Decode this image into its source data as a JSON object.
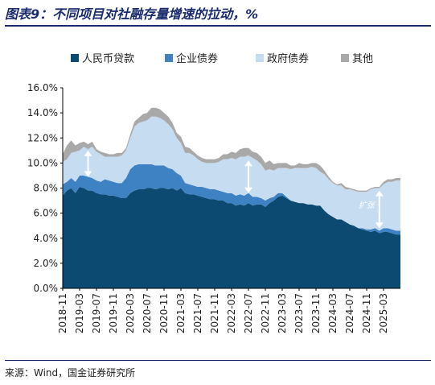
{
  "figure": {
    "title": "图表9：不同项目对社融存量增速的拉动，%",
    "source": "来源：Wind，国金证券研究所"
  },
  "colors": {
    "title": "#1a2b6e",
    "loans": "#0d4a72",
    "corp_bonds": "#3f82c4",
    "gov_bonds": "#c6dcf0",
    "other": "#a9a9a9",
    "arrow": "#ffffff"
  },
  "chart_data": {
    "type": "area",
    "stacked": true,
    "x": [
      "2018-11",
      "2018-12",
      "2019-01",
      "2019-02",
      "2019-03",
      "2019-04",
      "2019-05",
      "2019-06",
      "2019-07",
      "2019-08",
      "2019-09",
      "2019-10",
      "2019-11",
      "2019-12",
      "2020-01",
      "2020-02",
      "2020-03",
      "2020-04",
      "2020-05",
      "2020-06",
      "2020-07",
      "2020-08",
      "2020-09",
      "2020-10",
      "2020-11",
      "2020-12",
      "2021-01",
      "2021-02",
      "2021-03",
      "2021-04",
      "2021-05",
      "2021-06",
      "2021-07",
      "2021-08",
      "2021-09",
      "2021-10",
      "2021-11",
      "2021-12",
      "2022-01",
      "2022-02",
      "2022-03",
      "2022-04",
      "2022-05",
      "2022-06",
      "2022-07",
      "2022-08",
      "2022-09",
      "2022-10",
      "2022-11",
      "2022-12",
      "2023-01",
      "2023-02",
      "2023-03",
      "2023-04",
      "2023-05",
      "2023-06",
      "2023-07",
      "2023-08",
      "2023-09",
      "2023-10",
      "2023-11",
      "2023-12",
      "2024-01",
      "2024-02",
      "2024-03",
      "2024-04",
      "2024-05",
      "2024-06",
      "2024-07",
      "2024-08",
      "2024-09",
      "2024-10",
      "2024-11",
      "2024-12",
      "2025-01",
      "2025-02",
      "2025-03",
      "2025-04",
      "2025-05",
      "2025-06",
      "2025-07"
    ],
    "xticks": [
      "2018-11",
      "2019-03",
      "2019-07",
      "2019-11",
      "2020-03",
      "2020-07",
      "2020-11",
      "2021-03",
      "2021-07",
      "2021-11",
      "2022-03",
      "2022-07",
      "2022-11",
      "2023-03",
      "2023-07",
      "2023-11",
      "2024-03",
      "2024-07",
      "2024-11",
      "2025-03"
    ],
    "ylim": [
      0,
      16
    ],
    "yticks": [
      "0.0%",
      "2.0%",
      "4.0%",
      "6.0%",
      "8.0%",
      "10.0%",
      "12.0%",
      "14.0%",
      "16.0%"
    ],
    "series": [
      {
        "name": "人民币贷款",
        "values": [
          7.4,
          7.8,
          8.0,
          7.6,
          8.1,
          8.0,
          7.8,
          7.8,
          7.6,
          7.5,
          7.5,
          7.4,
          7.4,
          7.3,
          7.2,
          7.2,
          7.6,
          7.8,
          7.9,
          7.9,
          8.0,
          8.0,
          7.9,
          8.0,
          8.0,
          7.9,
          8.0,
          7.8,
          8.0,
          7.6,
          7.5,
          7.5,
          7.4,
          7.3,
          7.2,
          7.1,
          7.1,
          7.0,
          7.0,
          6.8,
          6.8,
          6.6,
          6.7,
          6.6,
          6.8,
          6.6,
          6.7,
          6.7,
          6.5,
          6.8,
          7.0,
          7.3,
          7.4,
          7.2,
          7.0,
          6.9,
          6.8,
          6.8,
          6.7,
          6.7,
          6.6,
          6.6,
          6.2,
          5.9,
          5.7,
          5.5,
          5.5,
          5.3,
          5.1,
          5.0,
          4.8,
          4.7,
          4.6,
          4.5,
          4.6,
          4.4,
          4.5,
          4.5,
          4.4,
          4.3,
          4.3
        ]
      },
      {
        "name": "企业债券",
        "values": [
          0.9,
          0.7,
          0.8,
          0.9,
          0.9,
          1.0,
          1.1,
          1.0,
          1.0,
          1.0,
          1.2,
          1.2,
          1.1,
          1.1,
          1.2,
          1.6,
          1.9,
          2.0,
          2.0,
          2.0,
          1.9,
          1.9,
          1.9,
          1.8,
          1.8,
          1.7,
          1.5,
          1.4,
          1.0,
          0.8,
          0.8,
          0.7,
          0.7,
          0.8,
          0.8,
          0.8,
          0.8,
          0.8,
          0.7,
          0.8,
          0.8,
          0.8,
          0.8,
          0.8,
          0.8,
          0.7,
          0.6,
          0.5,
          0.5,
          0.4,
          0.3,
          0.3,
          0.2,
          0.1,
          0.0,
          0.0,
          0.0,
          0.0,
          0.0,
          0.0,
          0.0,
          0.0,
          0.0,
          0.0,
          0.0,
          0.0,
          0.0,
          0.0,
          0.0,
          0.0,
          0.0,
          0.1,
          0.1,
          0.2,
          0.2,
          0.2,
          0.3,
          0.3,
          0.3,
          0.3,
          0.3
        ]
      },
      {
        "name": "政府债券",
        "values": [
          1.8,
          1.8,
          2.0,
          2.4,
          2.0,
          2.3,
          2.2,
          2.5,
          2.3,
          2.2,
          1.8,
          1.9,
          2.0,
          2.1,
          2.2,
          2.2,
          2.5,
          3.1,
          3.3,
          3.4,
          3.5,
          3.8,
          3.9,
          3.8,
          3.6,
          3.5,
          3.2,
          2.8,
          2.6,
          2.4,
          2.5,
          2.4,
          2.2,
          2.0,
          2.0,
          2.1,
          2.1,
          2.3,
          2.6,
          2.7,
          2.8,
          2.9,
          3.0,
          3.1,
          3.0,
          3.1,
          2.9,
          2.7,
          2.4,
          2.3,
          2.1,
          2.0,
          2.0,
          2.3,
          2.5,
          2.7,
          2.8,
          2.8,
          2.9,
          3.0,
          3.0,
          2.7,
          2.9,
          2.8,
          2.7,
          2.7,
          2.7,
          2.6,
          2.8,
          2.8,
          2.9,
          2.9,
          3.0,
          3.2,
          3.2,
          3.4,
          3.5,
          3.7,
          3.8,
          4.0,
          4.0
        ]
      },
      {
        "name": "其他",
        "values": [
          0.6,
          1.1,
          1.0,
          0.5,
          0.6,
          0.4,
          0.4,
          0.4,
          0.2,
          0.2,
          0.3,
          0.2,
          0.2,
          0.3,
          0.2,
          0.2,
          0.3,
          0.4,
          0.4,
          0.6,
          0.6,
          0.7,
          0.7,
          0.7,
          0.6,
          0.6,
          0.5,
          0.4,
          0.5,
          0.5,
          0.4,
          0.3,
          0.3,
          0.3,
          0.3,
          0.3,
          0.3,
          0.3,
          0.4,
          0.4,
          0.5,
          0.5,
          0.6,
          0.7,
          0.6,
          0.5,
          0.6,
          0.6,
          0.6,
          0.7,
          0.5,
          0.4,
          0.4,
          0.4,
          0.3,
          0.2,
          0.4,
          0.3,
          0.3,
          0.3,
          0.4,
          0.5,
          0.3,
          0.2,
          0.1,
          0.1,
          0.2,
          0.2,
          0.1,
          0.1,
          0.1,
          0.1,
          0.1,
          0.1,
          0.1,
          0.1,
          0.2,
          0.2,
          0.2,
          0.2,
          0.2
        ]
      }
    ],
    "legend": {
      "position": "top"
    },
    "annotations": [
      {
        "type": "double-arrow",
        "x": "2019-05",
        "y_from": 8.9,
        "y_to": 11.0,
        "label": ""
      },
      {
        "type": "double-arrow",
        "x": "2022-07",
        "y_from": 7.6,
        "y_to": 10.2,
        "label": ""
      },
      {
        "type": "double-arrow",
        "x": "2025-02",
        "y_from": 4.8,
        "y_to": 7.8,
        "label": "扩张"
      }
    ]
  }
}
